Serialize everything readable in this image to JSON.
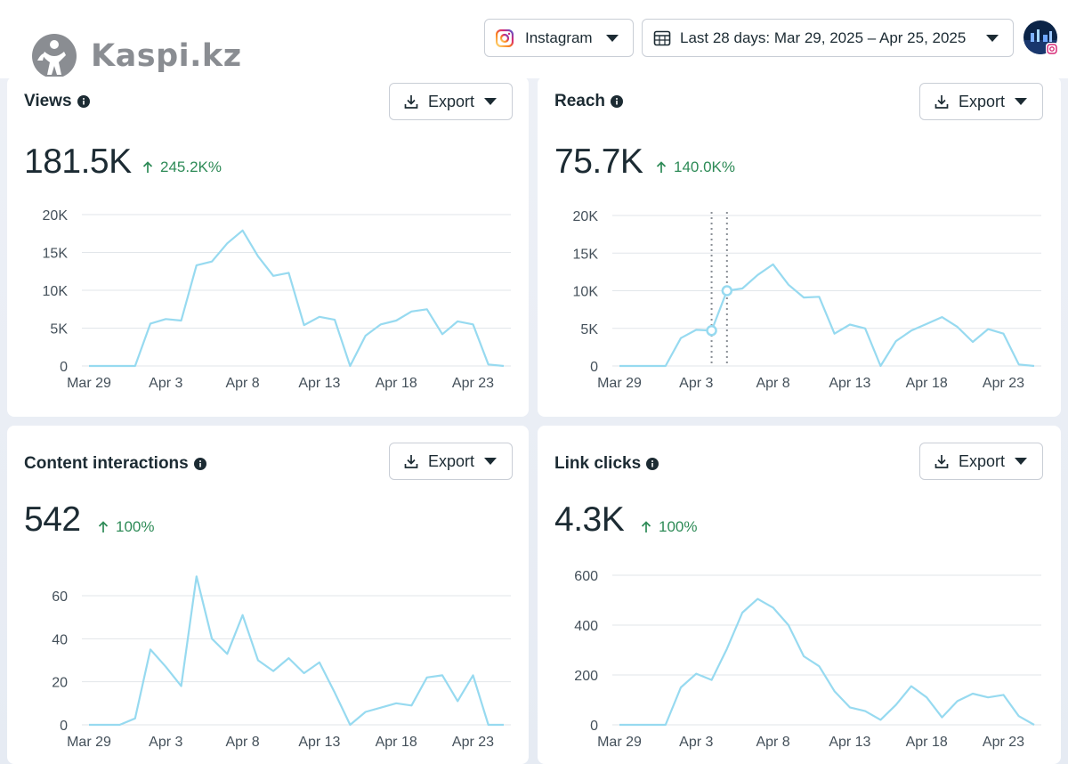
{
  "header": {
    "logo_text": "Kaspi.kz",
    "platform_label": "Instagram",
    "date_range_label": "Last 28 days: Mar 29, 2025 – Apr 25, 2025"
  },
  "colors": {
    "line": "#97daf0",
    "grid": "#e2e6ea",
    "delta_up": "#2e8b57",
    "brand_pink": "#d6249f"
  },
  "cards": [
    {
      "title": "Views",
      "value": "181.5K",
      "delta": "245.2K%",
      "export_label": "Export"
    },
    {
      "title": "Reach",
      "value": "75.7K",
      "delta": "140.0K%",
      "export_label": "Export"
    },
    {
      "title": "Content interactions",
      "value": "542",
      "delta": "100%",
      "export_label": "Export"
    },
    {
      "title": "Link clicks",
      "value": "4.3K",
      "delta": "100%",
      "export_label": "Export"
    }
  ],
  "chart_data": [
    {
      "type": "line",
      "x_tick_labels": [
        "Mar 29",
        "Apr 3",
        "Apr 8",
        "Apr 13",
        "Apr 18",
        "Apr 23"
      ],
      "y_tick_labels": [
        "0",
        "5K",
        "10K",
        "15K",
        "20K"
      ],
      "y_ticks": [
        0,
        5000,
        10000,
        15000,
        20000
      ],
      "ylim": [
        0,
        20000
      ],
      "values": [
        0,
        0,
        0,
        0,
        5600,
        6200,
        6000,
        13300,
        13800,
        16200,
        17900,
        14500,
        11900,
        12300,
        5400,
        6500,
        6100,
        0,
        4000,
        5500,
        6000,
        7200,
        7500,
        4200,
        5900,
        5500,
        200,
        0
      ]
    },
    {
      "type": "line",
      "x_tick_labels": [
        "Mar 29",
        "Apr 3",
        "Apr 8",
        "Apr 13",
        "Apr 18",
        "Apr 23"
      ],
      "y_tick_labels": [
        "0",
        "5K",
        "10K",
        "15K",
        "20K"
      ],
      "y_ticks": [
        0,
        5000,
        10000,
        15000,
        20000
      ],
      "ylim": [
        0,
        20000
      ],
      "values": [
        0,
        0,
        0,
        0,
        3700,
        4800,
        4700,
        10000,
        10300,
        12100,
        13500,
        10800,
        9100,
        9200,
        4300,
        5500,
        5000,
        0,
        3300,
        4700,
        5600,
        6500,
        5200,
        3200,
        4900,
        4300,
        200,
        0
      ],
      "highlighted_indices": [
        6,
        7
      ]
    },
    {
      "type": "line",
      "x_tick_labels": [
        "Mar 29",
        "Apr 3",
        "Apr 8",
        "Apr 13",
        "Apr 18",
        "Apr 23"
      ],
      "y_tick_labels": [
        "0",
        "20",
        "40",
        "60"
      ],
      "y_ticks": [
        0,
        20,
        40,
        60
      ],
      "ylim": [
        0,
        70
      ],
      "values": [
        0,
        0,
        0,
        3,
        35,
        27,
        18,
        69,
        40,
        33,
        51,
        30,
        25,
        31,
        24,
        29,
        15,
        0,
        6,
        8,
        10,
        9,
        22,
        23,
        11,
        23,
        0,
        0
      ]
    },
    {
      "type": "line",
      "x_tick_labels": [
        "Mar 29",
        "Apr 3",
        "Apr 8",
        "Apr 13",
        "Apr 18",
        "Apr 23"
      ],
      "y_tick_labels": [
        "0",
        "200",
        "400",
        "600"
      ],
      "y_ticks": [
        0,
        200,
        400,
        600
      ],
      "ylim": [
        0,
        600
      ],
      "values": [
        0,
        0,
        0,
        0,
        150,
        205,
        180,
        305,
        450,
        505,
        470,
        400,
        275,
        235,
        135,
        70,
        55,
        20,
        80,
        155,
        110,
        30,
        95,
        125,
        110,
        120,
        35,
        0
      ]
    }
  ]
}
